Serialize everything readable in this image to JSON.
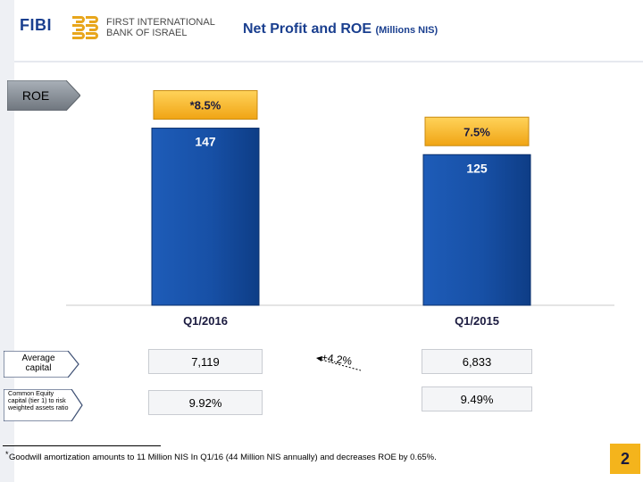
{
  "header": {
    "logo": "FIBI",
    "bank_name_line1": "FIRST INTERNATIONAL",
    "bank_name_line2": "BANK OF ISRAEL",
    "title": "Net Profit and ROE",
    "title_unit": "(Millions NIS)"
  },
  "roe_tag": "ROE",
  "colors": {
    "bar": "#1750a6",
    "roe_box": "#f5b324",
    "title": "#1a3f8f"
  },
  "chart_data": {
    "type": "bar",
    "categories": [
      "Q1/2016",
      "Q1/2015"
    ],
    "values": [
      147,
      125
    ],
    "value_labels": [
      "147",
      "125"
    ],
    "roe_labels": [
      "*8.5%",
      "7.5%"
    ],
    "ylim": [
      0,
      160
    ],
    "grid": false
  },
  "metrics": {
    "average_capital": {
      "label": "Average capital",
      "q1_2016": "7,119",
      "q1_2015": "6,833"
    },
    "cet1": {
      "label": "Common Equity capital (tier 1) to risk weighted assets ratio",
      "q1_2016": "9.92%",
      "q1_2015": "9.49%"
    },
    "growth": "+4.2%"
  },
  "footnote": {
    "marker": "*",
    "text": "Goodwill amortization amounts to 11 Million NIS In Q1/16 (44 Million NIS annually) and decreases ROE by 0.65%."
  },
  "page_number": "2"
}
